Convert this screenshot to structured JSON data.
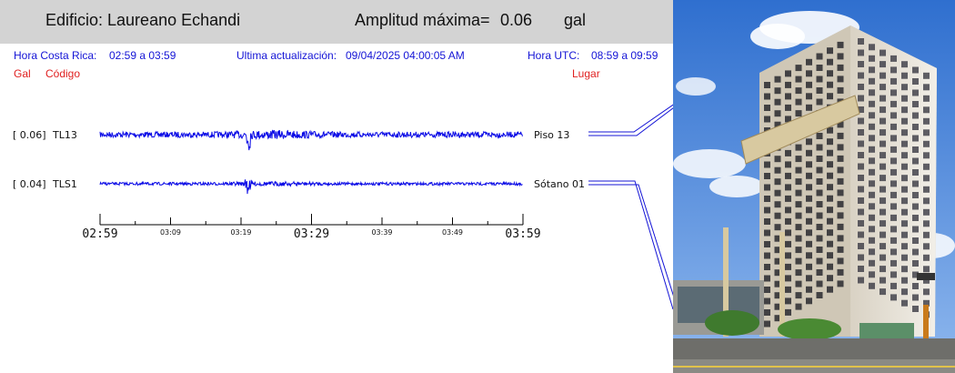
{
  "header": {
    "building_label": "Edificio: Laureano Echandi",
    "amplitude_label": "Amplitud máxima=",
    "amplitude_value": "0.06",
    "amplitude_unit": "gal"
  },
  "info": {
    "local_time_label": "Hora Costa Rica:",
    "local_time_range": "02:59 a 03:59",
    "updated_label": "Ultima actualización:",
    "updated_value": "09/04/2025 04:00:05 AM",
    "utc_label": "Hora UTC:",
    "utc_range": "08:59 a 09:59"
  },
  "columns": {
    "gal": "Gal",
    "code": "Código",
    "place": "Lugar"
  },
  "colors": {
    "trace": "#0a0ae6",
    "info_text": "#1414d6",
    "column_text": "#e02020",
    "header_bg": "#d3d3d3"
  },
  "chart_data": {
    "type": "line",
    "title": "",
    "xlabel": "",
    "ylabel": "",
    "x_range": [
      "02:59",
      "03:59"
    ],
    "x_tick_labels_major": [
      "02:59",
      "03:29",
      "03:59"
    ],
    "x_tick_labels_minor": [
      "03:09",
      "03:19",
      "03:39",
      "03:49"
    ],
    "series": [
      {
        "code": "TL13",
        "peak_gal": "[  0.06]",
        "place": "Piso 13",
        "peak_time": "03:20"
      },
      {
        "code": "TLS1",
        "peak_gal": "[  0.04]",
        "place": "Sótano 01",
        "peak_time": "03:20"
      }
    ]
  },
  "photo": {
    "icon": "building-photo"
  }
}
